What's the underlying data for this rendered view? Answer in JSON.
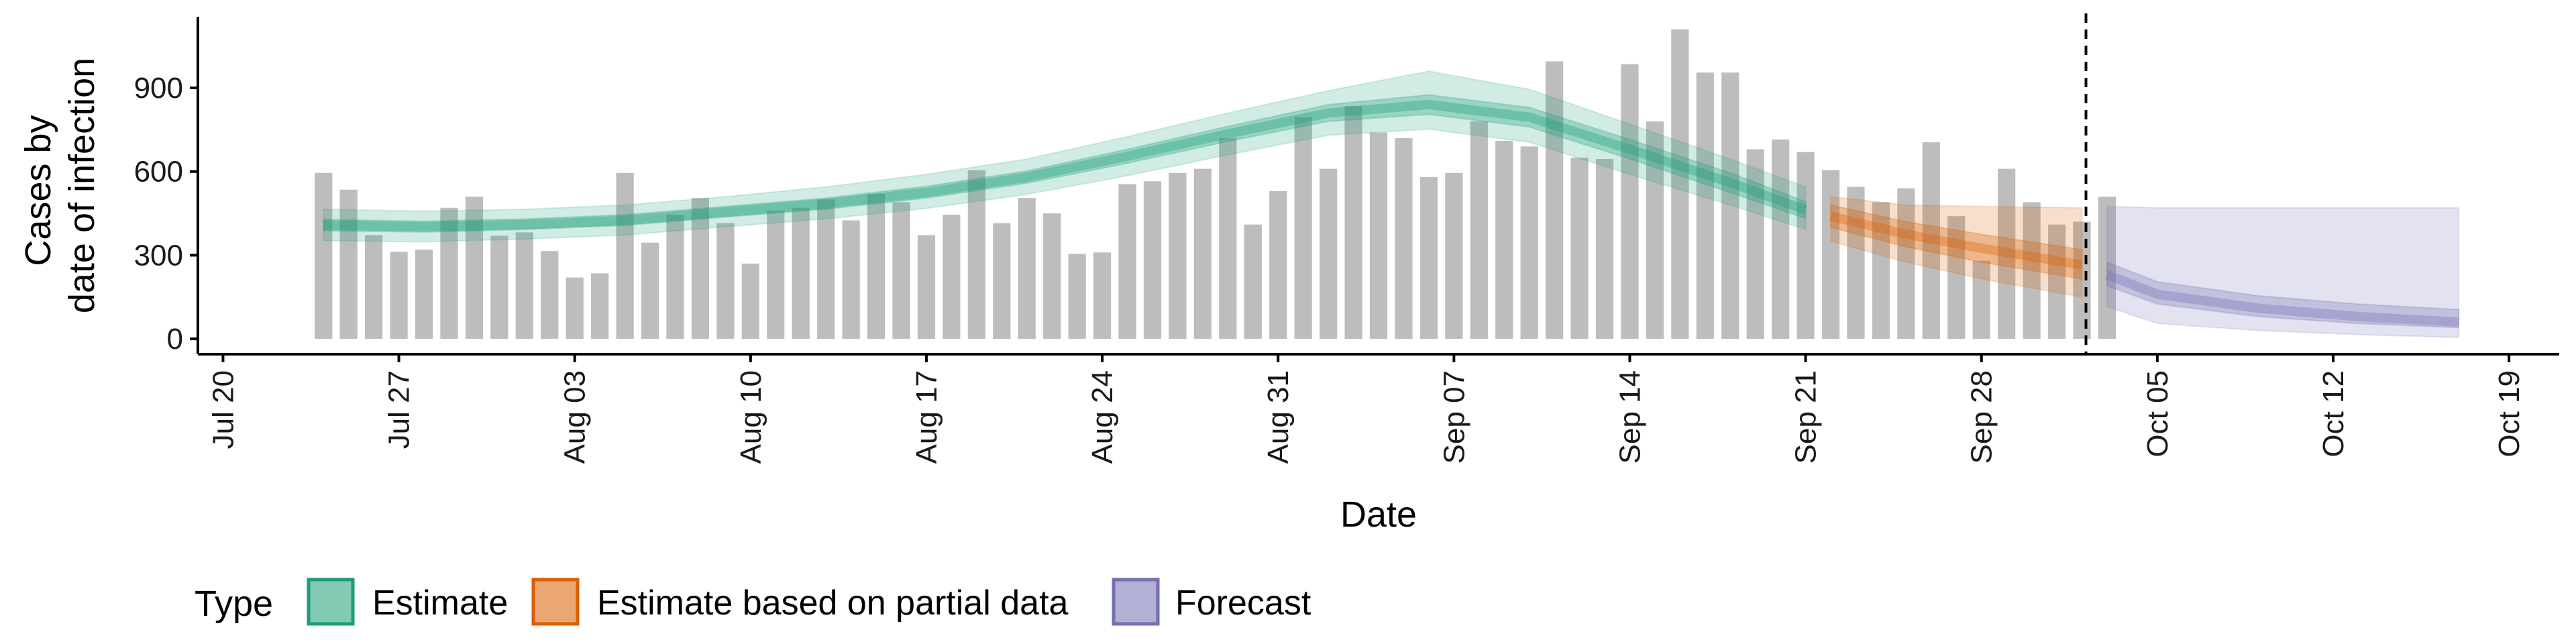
{
  "chart_data": {
    "type": "bar",
    "xlabel": "Date",
    "ylabel": [
      "Cases by",
      "date of infection"
    ],
    "x_ticks": [
      "Jul 20",
      "Jul 27",
      "Aug 03",
      "Aug 10",
      "Aug 17",
      "Aug 24",
      "Aug 31",
      "Sep 07",
      "Sep 14",
      "Sep 21",
      "Sep 28",
      "Oct 05",
      "Oct 12",
      "Oct 19"
    ],
    "x_tick_dates": [
      "2020-07-20",
      "2020-07-27",
      "2020-08-03",
      "2020-08-10",
      "2020-08-17",
      "2020-08-24",
      "2020-08-31",
      "2020-09-07",
      "2020-09-14",
      "2020-09-21",
      "2020-09-28",
      "2020-10-05",
      "2020-10-12",
      "2020-10-19"
    ],
    "y_ticks": [
      0,
      300,
      600,
      900
    ],
    "xlim": [
      "2020-07-19",
      "2020-10-21"
    ],
    "ylim": [
      -55,
      1155
    ],
    "grid": false,
    "forecast_date": "2020-10-02",
    "observed_cases": {
      "start_date": "2020-07-24",
      "values": [
        595,
        535,
        372,
        312,
        320,
        470,
        510,
        370,
        382,
        315,
        220,
        235,
        595,
        345,
        445,
        505,
        415,
        270,
        460,
        470,
        500,
        425,
        520,
        490,
        372,
        445,
        605,
        415,
        505,
        450,
        305,
        310,
        555,
        565,
        595,
        610,
        720,
        410,
        530,
        795,
        610,
        835,
        740,
        720,
        580,
        595,
        780,
        710,
        690,
        995,
        650,
        645,
        985,
        780,
        1110,
        955,
        955,
        680,
        715,
        670,
        605,
        545,
        490,
        540,
        705,
        440,
        280,
        610,
        490,
        410,
        420,
        510
      ]
    },
    "series": [
      {
        "name": "Estimate",
        "color": "#1b9e77",
        "x": [
          "2020-07-24",
          "2020-07-28",
          "2020-08-01",
          "2020-08-05",
          "2020-08-09",
          "2020-08-13",
          "2020-08-17",
          "2020-08-21",
          "2020-08-25",
          "2020-08-29",
          "2020-09-02",
          "2020-09-06",
          "2020-09-10",
          "2020-09-14",
          "2020-09-18",
          "2020-09-21"
        ],
        "median": [
          408,
          402,
          410,
          425,
          455,
          485,
          525,
          580,
          655,
          735,
          810,
          840,
          795,
          680,
          560,
          462
        ],
        "inner_lower": [
          388,
          383,
          392,
          407,
          437,
          465,
          505,
          558,
          630,
          708,
          780,
          805,
          760,
          645,
          525,
          432
        ],
        "inner_upper": [
          428,
          422,
          430,
          445,
          475,
          505,
          547,
          602,
          680,
          762,
          840,
          875,
          830,
          715,
          595,
          492
        ],
        "outer_lower": [
          352,
          348,
          358,
          372,
          402,
          430,
          468,
          518,
          585,
          660,
          730,
          752,
          705,
          590,
          480,
          392
        ],
        "outer_upper": [
          465,
          458,
          465,
          480,
          510,
          545,
          590,
          645,
          725,
          810,
          890,
          960,
          895,
          770,
          645,
          545
        ]
      },
      {
        "name": "Estimate based on partial data",
        "color": "#d95f02",
        "x": [
          "2020-09-22",
          "2020-09-25",
          "2020-09-28",
          "2020-10-02"
        ],
        "median": [
          440,
          375,
          325,
          265
        ],
        "inner_lower": [
          400,
          330,
          275,
          215
        ],
        "inner_upper": [
          480,
          420,
          375,
          320
        ],
        "outer_lower": [
          350,
          275,
          215,
          150
        ],
        "outer_upper": [
          510,
          480,
          475,
          470
        ]
      },
      {
        "name": "Forecast",
        "color": "#7570b3",
        "x": [
          "2020-10-03",
          "2020-10-05",
          "2020-10-09",
          "2020-10-13",
          "2020-10-17"
        ],
        "median": [
          230,
          160,
          110,
          80,
          60
        ],
        "inner_lower": [
          190,
          125,
          80,
          55,
          40
        ],
        "inner_upper": [
          275,
          205,
          155,
          125,
          105
        ],
        "outer_lower": [
          115,
          55,
          30,
          15,
          5
        ],
        "outer_upper": [
          475,
          470,
          470,
          470,
          470
        ]
      }
    ],
    "legend": {
      "title": "Type",
      "position": "bottom",
      "items": [
        "Estimate",
        "Estimate based on partial data",
        "Forecast"
      ]
    },
    "colors": {
      "bars": "#bdbdbd",
      "estimate": "#1b9e77",
      "partial": "#d95f02",
      "forecast": "#7570b3"
    }
  }
}
